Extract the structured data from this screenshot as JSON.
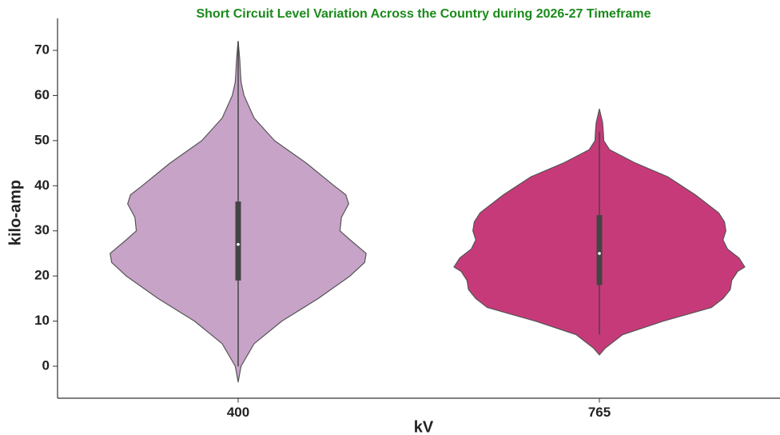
{
  "chart_data": {
    "type": "violin",
    "title": "Short Circuit Level Variation Across the Country during 2026-27 Timeframe",
    "x_label": "kV",
    "y_label": "kilo-amp",
    "categories": [
      "400",
      "765"
    ],
    "colors": [
      "#c7a3c8",
      "#c73a7a"
    ],
    "ylim": [
      -7,
      77
    ],
    "yticks": [
      0,
      10,
      20,
      30,
      40,
      50,
      60,
      70
    ],
    "stats": [
      {
        "min": 0,
        "q1": 19,
        "median": 27,
        "q3": 36.5,
        "max": 72
      },
      {
        "min": 7,
        "q1": 18,
        "median": 25,
        "q3": 33.5,
        "max": 52
      }
    ],
    "density": [
      {
        "y": [
          -3.5,
          0,
          5,
          10,
          15,
          20,
          23,
          25,
          28,
          30,
          33,
          36,
          38,
          40,
          45,
          50,
          55,
          60,
          63,
          65,
          68,
          72
        ],
        "width": [
          0,
          0.02,
          0.11,
          0.3,
          0.55,
          0.77,
          0.87,
          0.88,
          0.77,
          0.7,
          0.71,
          0.76,
          0.74,
          0.66,
          0.47,
          0.25,
          0.11,
          0.04,
          0.02,
          0.016,
          0.011,
          0
        ]
      },
      {
        "y": [
          2.5,
          4,
          7,
          10,
          13,
          15,
          17,
          19,
          21,
          22,
          24,
          26,
          28,
          30,
          32,
          34,
          38,
          42,
          45,
          48,
          50,
          52,
          54,
          57
        ],
        "width": [
          0,
          0.04,
          0.16,
          0.44,
          0.77,
          0.85,
          0.9,
          0.91,
          0.95,
          1,
          0.96,
          0.88,
          0.85,
          0.87,
          0.86,
          0.82,
          0.66,
          0.47,
          0.25,
          0.07,
          0.03,
          0.027,
          0.022,
          0
        ]
      }
    ]
  }
}
